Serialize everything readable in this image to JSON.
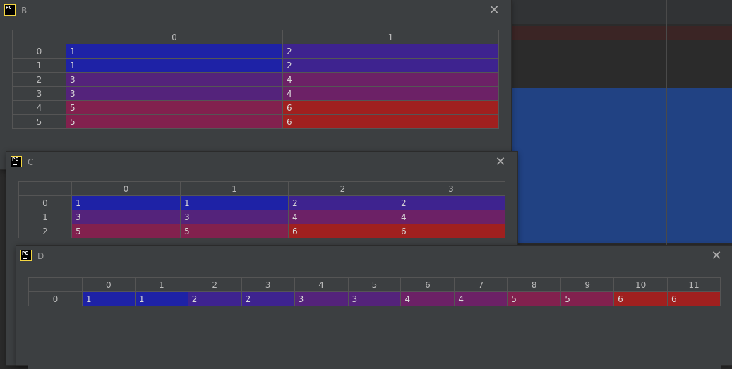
{
  "colors": {
    "1": "#1e22a6",
    "2": "#3e238f",
    "3": "#54237b",
    "4": "#6c2166",
    "5": "#82214e",
    "6": "#a0201f"
  },
  "windows": [
    {
      "id": "b",
      "title": "B",
      "icon": "pycharm-icon",
      "close_label": "✕",
      "columns": [
        "0",
        "1"
      ],
      "rows": [
        {
          "index": "0",
          "values": [
            "1",
            "2"
          ]
        },
        {
          "index": "1",
          "values": [
            "1",
            "2"
          ]
        },
        {
          "index": "2",
          "values": [
            "3",
            "4"
          ]
        },
        {
          "index": "3",
          "values": [
            "3",
            "4"
          ]
        },
        {
          "index": "4",
          "values": [
            "5",
            "6"
          ]
        },
        {
          "index": "5",
          "values": [
            "5",
            "6"
          ]
        }
      ]
    },
    {
      "id": "c",
      "title": "C",
      "icon": "pycharm-icon",
      "close_label": "✕",
      "columns": [
        "0",
        "1",
        "2",
        "3"
      ],
      "rows": [
        {
          "index": "0",
          "values": [
            "1",
            "1",
            "2",
            "2"
          ]
        },
        {
          "index": "1",
          "values": [
            "3",
            "3",
            "4",
            "4"
          ]
        },
        {
          "index": "2",
          "values": [
            "5",
            "5",
            "6",
            "6"
          ]
        }
      ]
    },
    {
      "id": "d",
      "title": "D",
      "icon": "pycharm-icon",
      "close_label": "✕",
      "columns": [
        "0",
        "1",
        "2",
        "3",
        "4",
        "5",
        "6",
        "7",
        "8",
        "9",
        "10",
        "11"
      ],
      "rows": [
        {
          "index": "0",
          "values": [
            "1",
            "1",
            "2",
            "2",
            "3",
            "3",
            "4",
            "4",
            "5",
            "5",
            "6",
            "6"
          ]
        }
      ]
    }
  ]
}
